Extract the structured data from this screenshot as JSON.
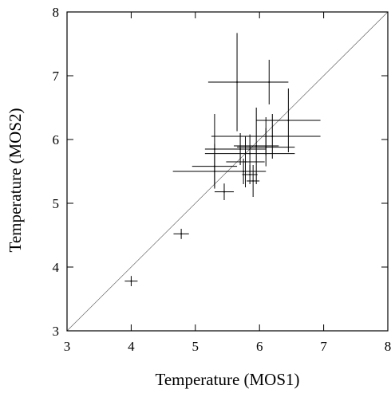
{
  "chart_data": {
    "type": "scatter",
    "xlabel": "Temperature (MOS1)",
    "ylabel": "Temperature (MOS2)",
    "xlim": [
      3,
      8
    ],
    "ylim": [
      3,
      8
    ],
    "x_ticks": [
      "3",
      "4",
      "5",
      "6",
      "7",
      "8"
    ],
    "y_ticks": [
      "3",
      "4",
      "5",
      "6",
      "7",
      "8"
    ],
    "grid": false,
    "reference_line": {
      "label": "",
      "from": [
        3,
        3
      ],
      "to": [
        8,
        8
      ]
    },
    "points": [
      {
        "x": 4.0,
        "y": 3.78,
        "xerr": 0.1,
        "yerr": 0.08
      },
      {
        "x": 4.78,
        "y": 4.52,
        "xerr": 0.12,
        "yerr": 0.08
      },
      {
        "x": 5.45,
        "y": 5.18,
        "xerr": 0.15,
        "yerr": 0.13
      },
      {
        "x": 5.3,
        "y": 5.58,
        "xerr": 0.35,
        "yerr": 0.35
      },
      {
        "x": 5.3,
        "y": 5.5,
        "xerr": 0.65,
        "yerr": 0.25
      },
      {
        "x": 5.3,
        "y": 5.85,
        "xerr": 0.15,
        "yerr": 0.55
      },
      {
        "x": 5.75,
        "y": 5.5,
        "xerr": 0.35,
        "yerr": 0.2
      },
      {
        "x": 5.7,
        "y": 5.85,
        "xerr": 0.4,
        "yerr": 0.25
      },
      {
        "x": 5.78,
        "y": 5.65,
        "xerr": 0.3,
        "yerr": 0.4
      },
      {
        "x": 5.85,
        "y": 5.45,
        "xerr": 0.12,
        "yerr": 0.15
      },
      {
        "x": 5.9,
        "y": 5.35,
        "xerr": 0.1,
        "yerr": 0.25
      },
      {
        "x": 5.85,
        "y": 5.78,
        "xerr": 0.7,
        "yerr": 0.3
      },
      {
        "x": 5.95,
        "y": 5.9,
        "xerr": 0.35,
        "yerr": 0.6
      },
      {
        "x": 6.1,
        "y": 5.88,
        "xerr": 0.45,
        "yerr": 0.3
      },
      {
        "x": 5.65,
        "y": 6.9,
        "xerr": 0.45,
        "yerr": 0.77
      },
      {
        "x": 6.15,
        "y": 6.9,
        "xerr": 0.3,
        "yerr": 0.35
      },
      {
        "x": 6.2,
        "y": 6.05,
        "xerr": 0.6,
        "yerr": 0.35
      },
      {
        "x": 6.45,
        "y": 6.3,
        "xerr": 0.5,
        "yerr": 0.5
      },
      {
        "x": 6.1,
        "y": 6.05,
        "xerr": 0.85,
        "yerr": 0.3
      }
    ]
  }
}
